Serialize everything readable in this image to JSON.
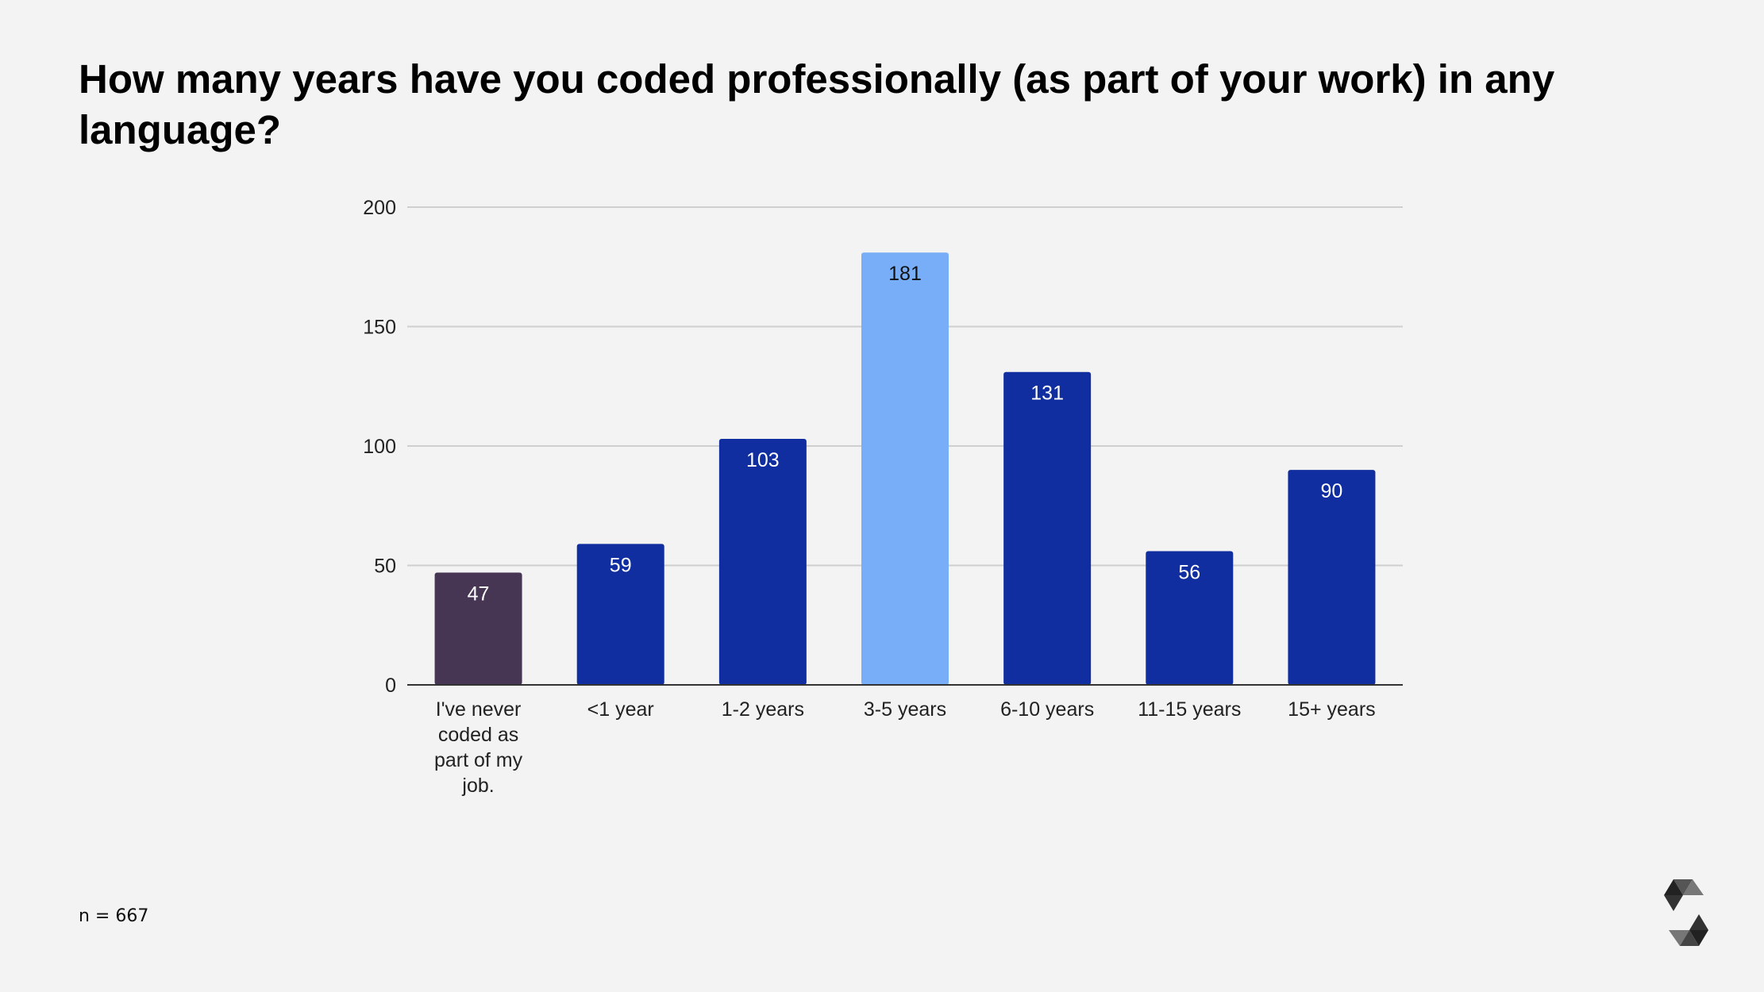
{
  "title": "How many years have you coded professionally (as part of your work) in any language?",
  "note": "n = 667",
  "colors": {
    "background": "#f3f3f3",
    "bar": "#102ea0",
    "highlight": "#78adf8",
    "never": "#463653"
  },
  "chart_data": {
    "type": "bar",
    "title": "How many years have you coded professionally (as part of your work) in any language?",
    "categories": [
      "I've never coded as part of my job.",
      "<1 year",
      "1-2 years",
      "3-5 years",
      "6-10 years",
      "11-15 years",
      "15+ years"
    ],
    "category_lines": [
      [
        "I've never",
        "coded as",
        "part of my",
        "job."
      ],
      [
        "<1 year"
      ],
      [
        "1-2 years"
      ],
      [
        "3-5 years"
      ],
      [
        "6-10 years"
      ],
      [
        "11-15 years"
      ],
      [
        "15+ years"
      ]
    ],
    "values": [
      47,
      59,
      103,
      181,
      131,
      56,
      90
    ],
    "bar_colors": [
      "#463653",
      "#102ea0",
      "#102ea0",
      "#78adf8",
      "#102ea0",
      "#102ea0",
      "#102ea0"
    ],
    "label_colors": [
      "#ffffff",
      "#ffffff",
      "#ffffff",
      "#111111",
      "#ffffff",
      "#ffffff",
      "#ffffff"
    ],
    "ylim": [
      0,
      200
    ],
    "yticks": [
      0,
      50,
      100,
      150,
      200
    ],
    "xlabel": "",
    "ylabel": "",
    "grid": true,
    "legend": "none"
  },
  "logo": "solidity-logo"
}
